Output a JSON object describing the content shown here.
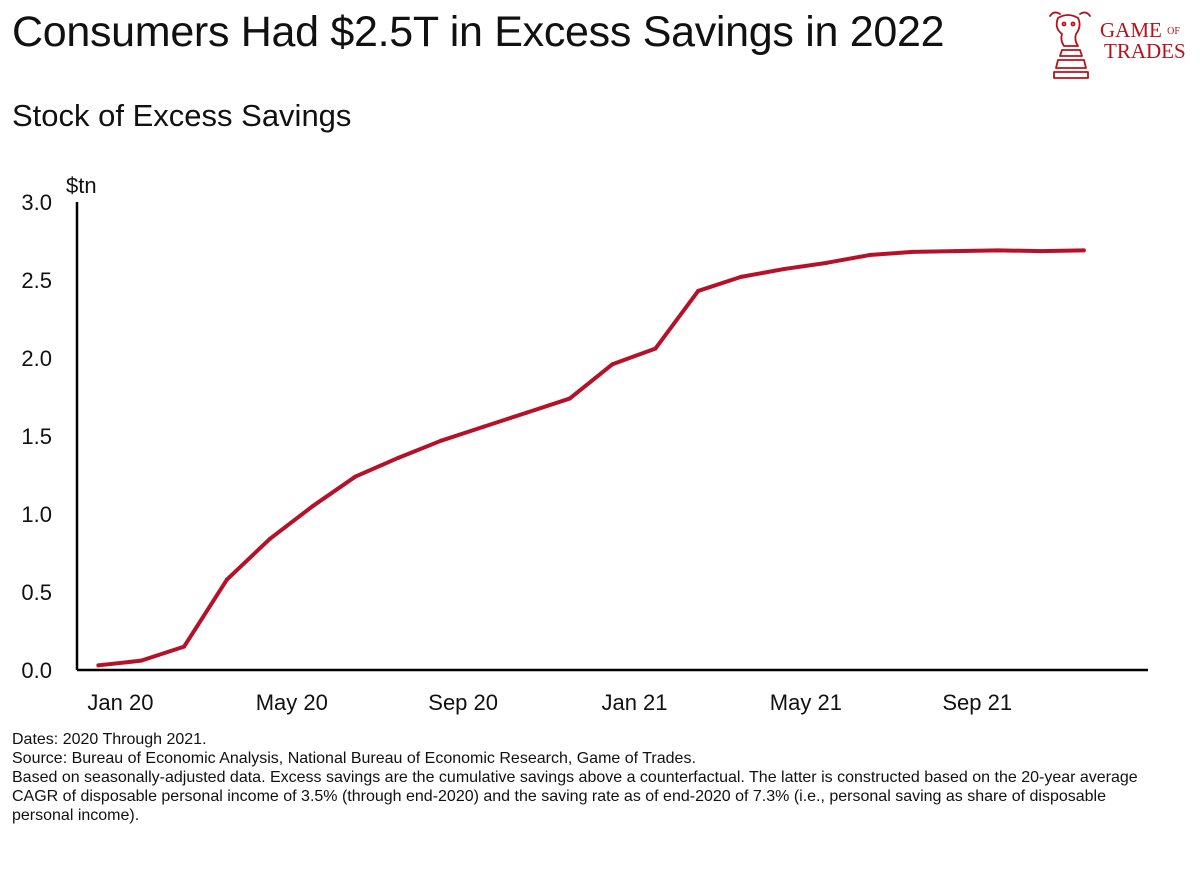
{
  "header": {
    "title": "Consumers Had $2.5T in Excess Savings in 2022",
    "subtitle": "Stock of Excess Savings"
  },
  "logo": {
    "line1_a": "GAME",
    "line1_b": "OF",
    "line2": "TRADES",
    "icon": "bull-chess-knight-icon",
    "color": "#b5121b"
  },
  "chart_data": {
    "type": "line",
    "title": "Stock of Excess Savings",
    "ylabel": "$tn",
    "xlabel": "",
    "ylim": [
      0,
      3.0
    ],
    "yticks": [
      "0.0",
      "0.5",
      "1.0",
      "1.5",
      "2.0",
      "2.5",
      "3.0"
    ],
    "xticks": [
      {
        "label": "Jan 20",
        "x": 0
      },
      {
        "label": "May 20",
        "x": 4
      },
      {
        "label": "Sep 20",
        "x": 8
      },
      {
        "label": "Jan 21",
        "x": 12
      },
      {
        "label": "May 21",
        "x": 16
      },
      {
        "label": "Sep 21",
        "x": 20
      }
    ],
    "xlim": [
      -0.5,
      24.5
    ],
    "grid": false,
    "color": "#b5122a",
    "series": [
      {
        "name": "Stock of Excess Savings",
        "x": [
          0,
          1,
          2,
          3,
          4,
          5,
          6,
          7,
          8,
          9,
          10,
          11,
          12,
          13,
          14,
          15,
          16,
          17,
          18,
          19,
          20,
          21,
          22,
          23
        ],
        "values": [
          0.03,
          0.06,
          0.15,
          0.58,
          0.84,
          1.05,
          1.24,
          1.36,
          1.47,
          1.56,
          1.65,
          1.74,
          1.96,
          2.06,
          2.43,
          2.52,
          2.57,
          2.61,
          2.66,
          2.68,
          2.685,
          2.69,
          2.685,
          2.69
        ]
      }
    ]
  },
  "footnotes": {
    "dates": "Dates: 2020 Through 2021.",
    "source": "Source: Bureau of Economic Analysis, National Bureau of Economic Research, Game of Trades.",
    "note": "Based on seasonally-adjusted data. Excess savings are the cumulative savings above a counterfactual. The latter is constructed based on the 20-year average CAGR of disposable personal income of 3.5% (through end-2020) and the saving rate as of end-2020 of 7.3% (i.e., personal saving as share of disposable personal income)."
  }
}
